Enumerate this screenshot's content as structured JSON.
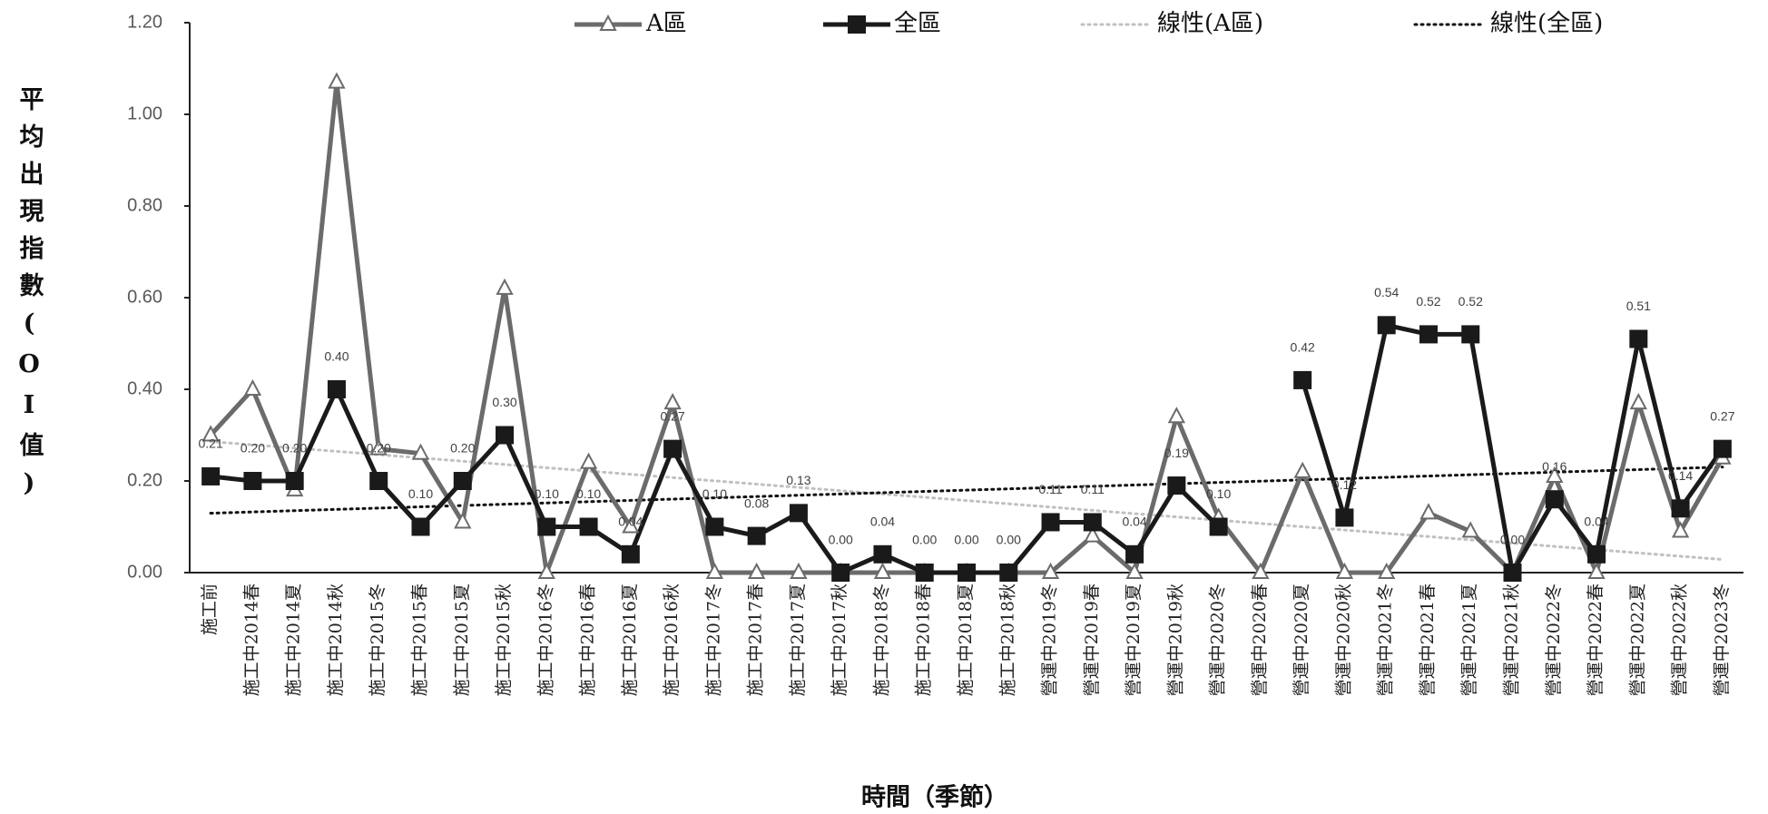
{
  "chart_data": {
    "type": "line",
    "x_label": "時間（季節）",
    "y_label": "平均出現指數(OI值)",
    "categories": [
      "施工前",
      "施工中2014春",
      "施工中2014夏",
      "施工中2014秋",
      "施工中2015冬",
      "施工中2015春",
      "施工中2015夏",
      "施工中2015秋",
      "施工中2016冬",
      "施工中2016春",
      "施工中2016夏",
      "施工中2016秋",
      "施工中2017冬",
      "施工中2017春",
      "施工中2017夏",
      "施工中2017秋",
      "施工中2018冬",
      "施工中2018春",
      "施工中2018夏",
      "施工中2018秋",
      "營運中2019冬",
      "營運中2019春",
      "營運中2019夏",
      "營運中2019秋",
      "營運中2020冬",
      "營運中2020春",
      "營運中2020夏",
      "營運中2020秋",
      "營運中2021冬",
      "營運中2021春",
      "營運中2021夏",
      "營運中2021秋",
      "營運中2022冬",
      "營運中2022春",
      "營運中2022夏",
      "營運中2022秋",
      "營運中2023冬"
    ],
    "series": [
      {
        "name": "A區",
        "color": "#6b6b6b",
        "marker": "triangle",
        "values": [
          0.3,
          0.4,
          0.18,
          1.07,
          0.27,
          0.26,
          0.11,
          0.62,
          0.0,
          0.24,
          0.1,
          0.37,
          0.0,
          0.0,
          0.0,
          0.0,
          0.0,
          0.0,
          0.0,
          0.0,
          0.0,
          0.08,
          0.0,
          0.34,
          0.12,
          0.0,
          0.22,
          0.0,
          0.0,
          0.13,
          0.09,
          0.0,
          0.21,
          0.0,
          0.37,
          0.09,
          0.25
        ]
      },
      {
        "name": "全區",
        "color": "#1a1a1a",
        "marker": "square",
        "values": [
          0.21,
          0.2,
          0.2,
          0.4,
          0.2,
          0.1,
          0.2,
          0.3,
          0.1,
          0.1,
          0.04,
          0.27,
          0.1,
          0.08,
          0.13,
          0.0,
          0.04,
          0.0,
          0.0,
          0.0,
          0.11,
          0.11,
          0.04,
          0.19,
          0.1,
          null,
          0.42,
          0.12,
          0.54,
          0.52,
          0.52,
          0.0,
          0.16,
          0.04,
          0.51,
          0.14,
          0.27
        ],
        "value_labels": [
          "0.21",
          "0.20",
          "0.20",
          "0.40",
          "0.20",
          "0.10",
          "0.20",
          "0.30",
          "0.10",
          "0.10",
          "0.04",
          "0.27",
          "0.10",
          "0.08",
          "0.13",
          "0.00",
          "0.04",
          "0.00",
          "0.00",
          "0.00",
          "0.11",
          "0.11",
          "0.04",
          "0.19",
          "0.10",
          null,
          "0.42",
          "0.12",
          "0.54",
          "0.52",
          "0.52",
          "0.00",
          "0.16",
          "0.04",
          "0.51",
          "0.14",
          "0.27"
        ]
      }
    ],
    "trendlines": [
      {
        "name": "線性(A區)",
        "color": "#c0c0c0"
      },
      {
        "name": "線性(全區)",
        "color": "#111111"
      }
    ],
    "ylim": [
      0,
      1.2
    ],
    "yticks": [
      {
        "value": 0,
        "label": "0.00"
      },
      {
        "value": 0.2,
        "label": "0.20"
      },
      {
        "value": 0.4,
        "label": "0.40"
      },
      {
        "value": 0.6,
        "label": "0.60"
      },
      {
        "value": 0.8,
        "label": "0.80"
      },
      {
        "value": 1,
        "label": "1.00"
      },
      {
        "value": 1.2,
        "label": "1.20"
      }
    ]
  }
}
